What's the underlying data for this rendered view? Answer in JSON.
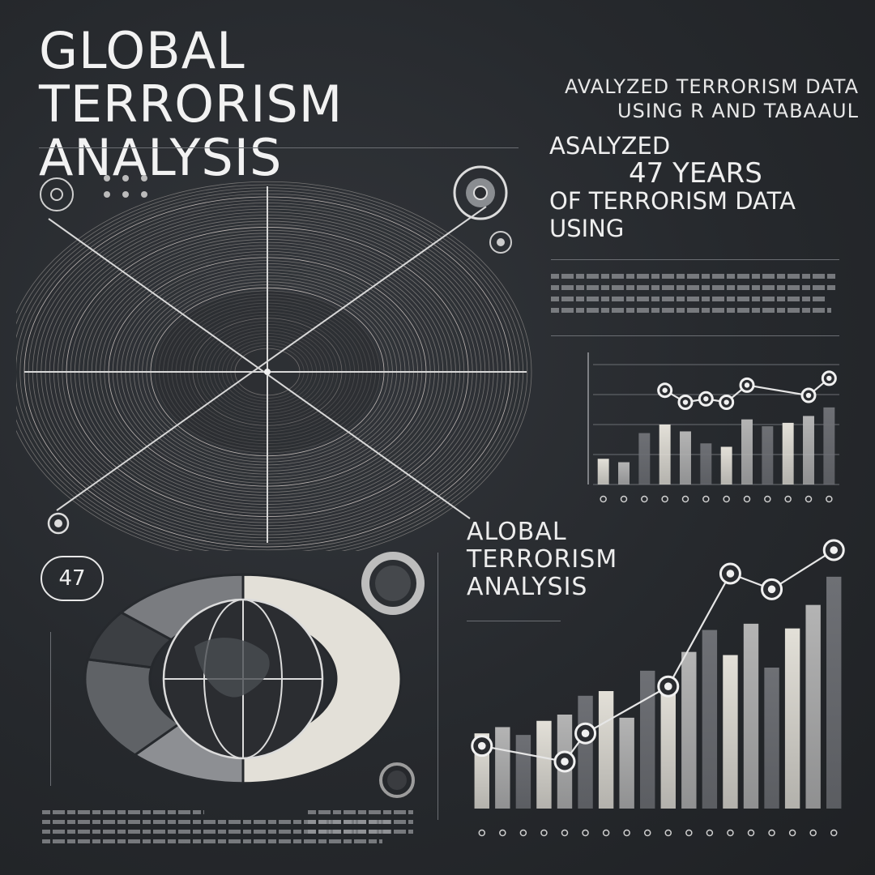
{
  "header": {
    "title": "GLOBAL TERRORISM ANALYSIS",
    "subtitle_line1": "AVALYZED TERRORISM DATA",
    "subtitle_line2": "USING R AND TABAAUL"
  },
  "callout": {
    "line1": "ASALYZED",
    "line2": "47 YEARS",
    "line3": "OF TERRORISM DATA",
    "line4": "USING"
  },
  "section": {
    "line1": "ALOBAL",
    "line2": "TERRORISM",
    "line3": "ANALYSIS"
  },
  "badge": {
    "value": "47"
  },
  "colors": {
    "background": "#26292d",
    "foreground": "#e6e6e6",
    "bar_light": "#e3e0d8",
    "bar_mid": "#b4b4b4",
    "bar_dark": "#6e7075"
  },
  "icons": [
    "target-icon",
    "globe-icon",
    "donut-icon",
    "dot-marker-icon"
  ],
  "chart_data": [
    {
      "type": "pie",
      "labels": [
        "",
        "",
        "",
        "",
        ""
      ],
      "values": [
        50,
        12,
        16,
        8,
        14
      ]
    },
    {
      "type": "bar",
      "values": [
        15,
        13,
        30,
        35,
        31,
        24,
        22,
        38,
        34,
        36,
        40,
        45
      ],
      "line_values": [
        null,
        null,
        null,
        55,
        48,
        50,
        48,
        58,
        null,
        null,
        52,
        62
      ],
      "ylim": [
        0,
        70
      ],
      "grid": true
    },
    {
      "type": "bar",
      "values": [
        48,
        52,
        47,
        56,
        60,
        72,
        75,
        58,
        88,
        80,
        100,
        114,
        98,
        118,
        90,
        115,
        130,
        148
      ],
      "line_values": [
        40,
        null,
        null,
        null,
        30,
        48,
        null,
        null,
        null,
        78,
        null,
        null,
        150,
        null,
        140,
        null,
        null,
        165
      ],
      "ylim": [
        0,
        180
      ],
      "grid": false
    }
  ]
}
